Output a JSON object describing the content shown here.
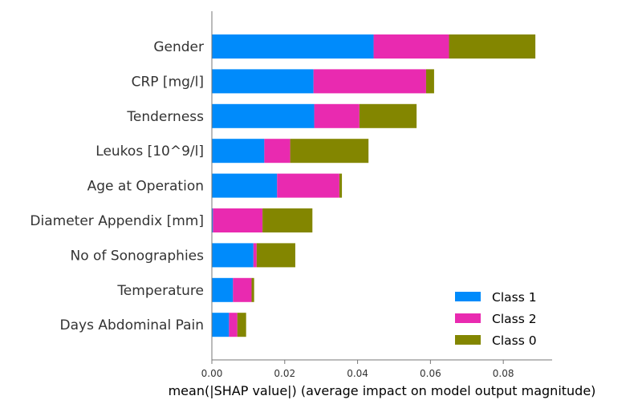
{
  "chart_data": {
    "type": "bar",
    "orientation": "horizontal",
    "stacked": true,
    "categories": [
      "Gender",
      "CRP [mg/l]",
      "Tenderness",
      "Leukos [10^9/l]",
      "Age at Operation",
      "Diameter Appendix [mm]",
      "No of Sonographies",
      "Temperature",
      "Days Abdominal Pain"
    ],
    "series": [
      {
        "name": "Class 1",
        "color": "#008bfb",
        "values": [
          0.0444,
          0.0279,
          0.0281,
          0.0144,
          0.0179,
          0.0003,
          0.0114,
          0.0058,
          0.0047
        ]
      },
      {
        "name": "Class 2",
        "color": "#e92ab0",
        "values": [
          0.0207,
          0.0309,
          0.0124,
          0.0071,
          0.0171,
          0.0136,
          0.0009,
          0.0051,
          0.0023
        ]
      },
      {
        "name": "Class 0",
        "color": "#838600",
        "values": [
          0.0237,
          0.0022,
          0.0157,
          0.0215,
          0.0007,
          0.0137,
          0.0106,
          0.0007,
          0.0024
        ]
      }
    ],
    "xlabel": "mean(|SHAP value|) (average impact on model output magnitude)",
    "ylabel": "",
    "xlim": [
      0,
      0.0934
    ],
    "xticks": [
      "0.00",
      "0.02",
      "0.04",
      "0.06",
      "0.08"
    ],
    "xtick_values": [
      0,
      0.02,
      0.04,
      0.06,
      0.08
    ],
    "grid": false,
    "legend_position": "lower-right"
  }
}
